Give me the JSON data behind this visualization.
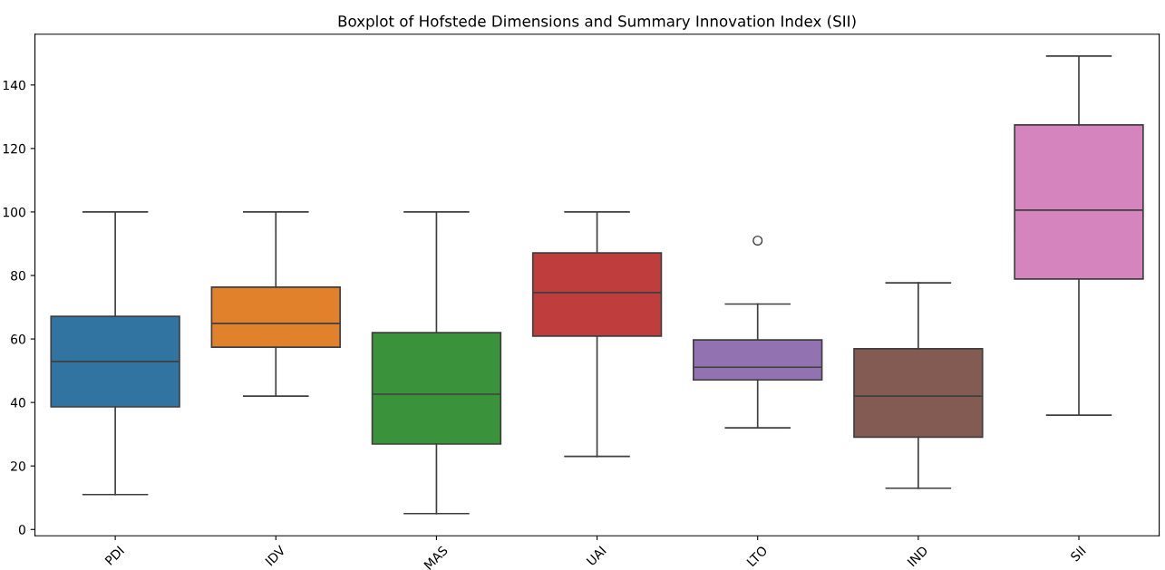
{
  "chart_data": {
    "type": "box",
    "title": "Boxplot of Hofstede Dimensions and Summary Innovation Index (SII)",
    "categories": [
      "PDI",
      "IDV",
      "MAS",
      "UAI",
      "LTO",
      "IND",
      "SII"
    ],
    "colors": [
      "#3274a1",
      "#e1812c",
      "#3a923a",
      "#c03d3e",
      "#9372b2",
      "#845b53",
      "#d684bd"
    ],
    "boxes": [
      {
        "low": 11,
        "q1": 38.6,
        "median": 52.9,
        "q3": 67.1,
        "high": 100
      },
      {
        "low": 42,
        "q1": 57.4,
        "median": 64.9,
        "q3": 76.3,
        "high": 100
      },
      {
        "low": 5,
        "q1": 26.9,
        "median": 42.6,
        "q3": 62,
        "high": 100
      },
      {
        "low": 23,
        "q1": 60.9,
        "median": 74.6,
        "q3": 87.1,
        "high": 100
      },
      {
        "low": 32,
        "q1": 47.1,
        "median": 51.1,
        "q3": 59.7,
        "high": 71,
        "outliers": [
          91
        ]
      },
      {
        "low": 13,
        "q1": 29.1,
        "median": 42,
        "q3": 56.9,
        "high": 77.7
      },
      {
        "low": 36,
        "q1": 78.9,
        "median": 100.6,
        "q3": 127.4,
        "high": 149.1
      }
    ],
    "ylim": [
      -2,
      156
    ],
    "yticks": [
      0,
      20,
      40,
      60,
      80,
      100,
      120,
      140
    ],
    "grid": false,
    "legend": false
  }
}
